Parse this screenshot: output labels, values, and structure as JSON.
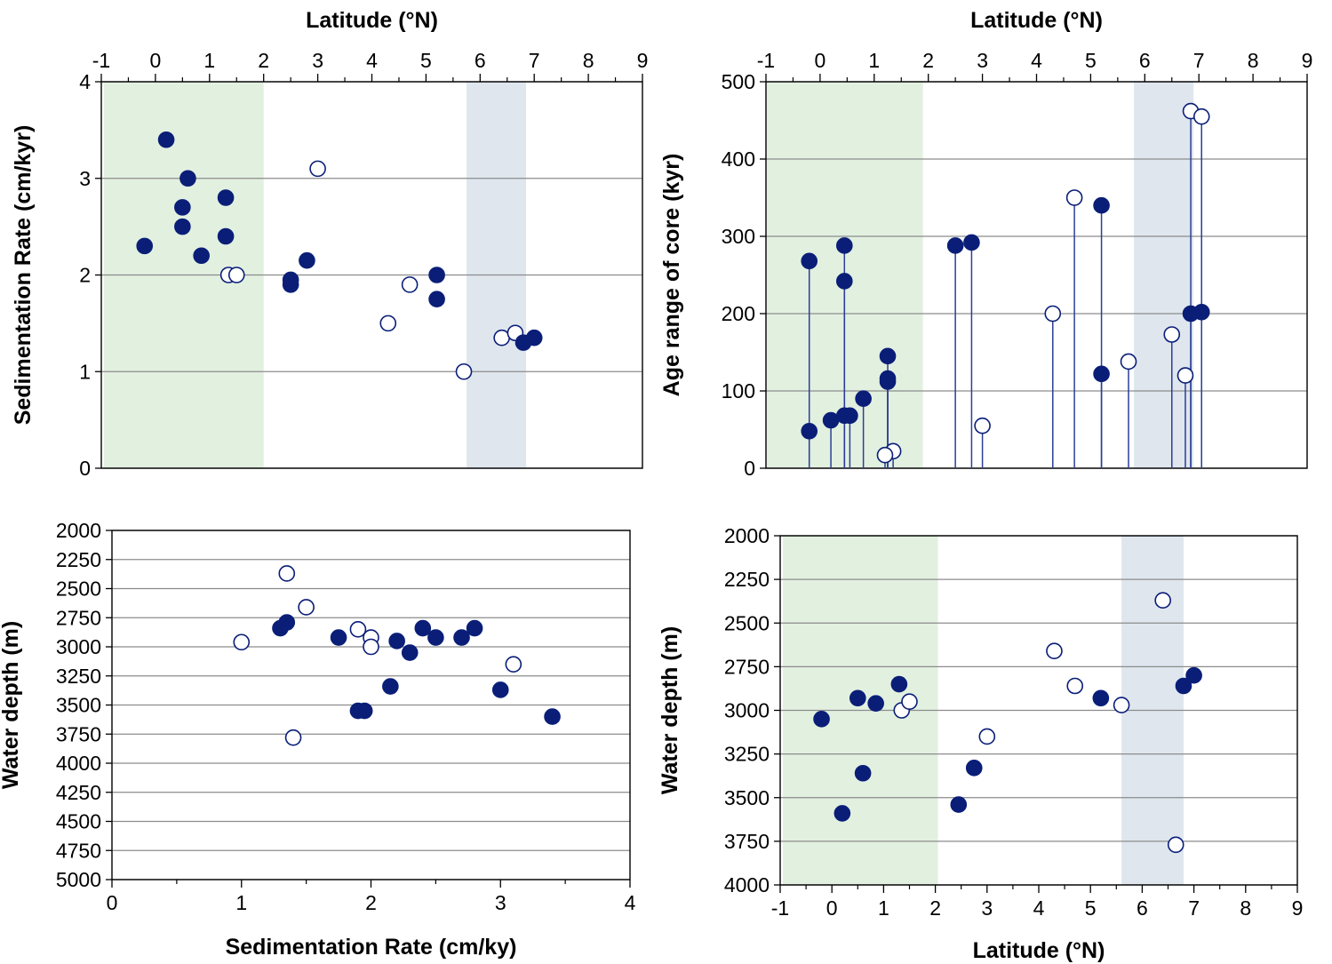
{
  "colors": {
    "filled": "#0a1e78",
    "stem": "#2c3f96",
    "grid": "#8c8c8c",
    "green_band": "#e2f0e0",
    "blue_band": "#dfe6ee"
  },
  "chart_data": [
    {
      "type": "scatter",
      "title": "",
      "xlabel": "Latitude (°N)",
      "ylabel": "Sedimentation Rate (cm/kyr)",
      "xaxis_position": "top",
      "xlim": [
        -1,
        9
      ],
      "ylim": [
        0,
        4
      ],
      "x_ticks": [
        "-1",
        "0",
        "1",
        "2",
        "3",
        "4",
        "5",
        "6",
        "7",
        "8",
        "9"
      ],
      "y_ticks": [
        "0",
        "1",
        "2",
        "3",
        "4"
      ],
      "grid": "horizontal",
      "shaded_bands": [
        {
          "from": -0.95,
          "to": 2.0,
          "color": "green"
        },
        {
          "from": 5.75,
          "to": 6.85,
          "color": "blue"
        }
      ],
      "series": [
        {
          "marker": "filled",
          "points": [
            [
              -0.2,
              2.3
            ],
            [
              0.2,
              3.4
            ],
            [
              0.6,
              3.0
            ],
            [
              0.5,
              2.7
            ],
            [
              0.5,
              2.5
            ],
            [
              1.3,
              2.8
            ],
            [
              1.3,
              2.4
            ],
            [
              0.85,
              2.2
            ],
            [
              2.5,
              1.95
            ],
            [
              2.5,
              1.9
            ],
            [
              2.8,
              2.15
            ],
            [
              5.2,
              2.0
            ],
            [
              5.2,
              1.75
            ],
            [
              6.8,
              1.3
            ],
            [
              7.0,
              1.35
            ]
          ]
        },
        {
          "marker": "open",
          "points": [
            [
              3.0,
              3.1
            ],
            [
              1.35,
              2.0
            ],
            [
              1.5,
              2.0
            ],
            [
              4.7,
              1.9
            ],
            [
              4.3,
              1.5
            ],
            [
              5.7,
              1.0
            ],
            [
              6.4,
              1.35
            ],
            [
              6.65,
              1.4
            ]
          ]
        }
      ]
    },
    {
      "type": "scatter",
      "title": "",
      "xlabel": "Latitude (°N)",
      "ylabel": "Age range of core (kyr)",
      "xaxis_position": "top",
      "xlim": [
        -1,
        9
      ],
      "ylim": [
        0,
        500
      ],
      "x_ticks": [
        "-1",
        "0",
        "1",
        "2",
        "3",
        "4",
        "5",
        "6",
        "7",
        "8",
        "9"
      ],
      "y_ticks": [
        "0",
        "100",
        "200",
        "300",
        "400",
        "500"
      ],
      "grid": "horizontal",
      "stems_to_zero": true,
      "shaded_bands": [
        {
          "from": -1.0,
          "to": 1.9,
          "color": "green"
        },
        {
          "from": 5.8,
          "to": 6.9,
          "color": "blue"
        }
      ],
      "series": [
        {
          "marker": "filled",
          "points": [
            [
              -0.2,
              268
            ],
            [
              -0.2,
              48
            ],
            [
              0.2,
              62
            ],
            [
              0.45,
              288
            ],
            [
              0.45,
              242
            ],
            [
              0.45,
              68
            ],
            [
              0.55,
              68
            ],
            [
              0.8,
              90
            ],
            [
              1.25,
              145
            ],
            [
              1.25,
              116
            ],
            [
              1.25,
              112
            ],
            [
              2.5,
              288
            ],
            [
              2.8,
              292
            ],
            [
              5.2,
              340
            ],
            [
              5.2,
              122
            ],
            [
              6.85,
              200
            ],
            [
              7.05,
              202
            ]
          ]
        },
        {
          "marker": "open",
          "points": [
            [
              1.35,
              22
            ],
            [
              1.2,
              17
            ],
            [
              3.0,
              55
            ],
            [
              4.3,
              200
            ],
            [
              4.7,
              350
            ],
            [
              5.7,
              138
            ],
            [
              6.5,
              173
            ],
            [
              6.75,
              120
            ],
            [
              6.85,
              462
            ],
            [
              7.05,
              455
            ]
          ]
        }
      ]
    },
    {
      "type": "scatter",
      "title": "",
      "xlabel": "Sedimentation Rate (cm/ky)",
      "ylabel": "Water depth (m)",
      "xaxis_position": "bottom",
      "xlim": [
        0,
        4
      ],
      "ylim": [
        5000,
        2000
      ],
      "y_inverted": true,
      "x_ticks": [
        "0",
        "1",
        "2",
        "3",
        "4"
      ],
      "y_ticks": [
        "2000",
        "2250",
        "2500",
        "2750",
        "3000",
        "3250",
        "3500",
        "3750",
        "4000",
        "4250",
        "4500",
        "4750",
        "5000"
      ],
      "grid": "horizontal",
      "series": [
        {
          "marker": "filled",
          "points": [
            [
              1.3,
              2840
            ],
            [
              1.35,
              2790
            ],
            [
              1.75,
              2920
            ],
            [
              1.9,
              3550
            ],
            [
              1.95,
              3550
            ],
            [
              2.15,
              3340
            ],
            [
              2.2,
              2950
            ],
            [
              2.3,
              3050
            ],
            [
              2.4,
              2840
            ],
            [
              2.5,
              2920
            ],
            [
              2.7,
              2920
            ],
            [
              2.8,
              2840
            ],
            [
              3.0,
              3370
            ],
            [
              3.4,
              3600
            ]
          ]
        },
        {
          "marker": "open",
          "points": [
            [
              1.0,
              2960
            ],
            [
              1.35,
              2370
            ],
            [
              1.4,
              3780
            ],
            [
              1.5,
              2660
            ],
            [
              1.9,
              2850
            ],
            [
              2.0,
              2920
            ],
            [
              2.0,
              3000
            ],
            [
              3.1,
              3150
            ]
          ]
        }
      ]
    },
    {
      "type": "scatter",
      "title": "",
      "xlabel": "Latitude (°N)",
      "ylabel": "Water depth (m)",
      "xaxis_position": "bottom",
      "xlim": [
        -1,
        9
      ],
      "ylim": [
        4000,
        2000
      ],
      "y_inverted": true,
      "x_ticks": [
        "-1",
        "0",
        "1",
        "2",
        "3",
        "4",
        "5",
        "6",
        "7",
        "8",
        "9"
      ],
      "y_ticks": [
        "2000",
        "2250",
        "2500",
        "2750",
        "3000",
        "3250",
        "3500",
        "3750",
        "4000"
      ],
      "grid": "horizontal",
      "shaded_bands": [
        {
          "from": -0.95,
          "to": 2.05,
          "color": "green"
        },
        {
          "from": 5.6,
          "to": 6.8,
          "color": "blue"
        }
      ],
      "series": [
        {
          "marker": "filled",
          "points": [
            [
              -0.2,
              3050
            ],
            [
              0.2,
              3590
            ],
            [
              0.5,
              2930
            ],
            [
              0.6,
              3360
            ],
            [
              0.85,
              2960
            ],
            [
              1.3,
              2850
            ],
            [
              2.45,
              3540
            ],
            [
              2.75,
              3330
            ],
            [
              5.2,
              2930
            ],
            [
              6.8,
              2860
            ],
            [
              7.0,
              2800
            ]
          ]
        },
        {
          "marker": "open",
          "points": [
            [
              1.35,
              3000
            ],
            [
              1.5,
              2950
            ],
            [
              3.0,
              3150
            ],
            [
              4.3,
              2660
            ],
            [
              4.7,
              2860
            ],
            [
              5.6,
              2970
            ],
            [
              6.4,
              2370
            ],
            [
              6.65,
              3770
            ]
          ]
        }
      ]
    }
  ]
}
